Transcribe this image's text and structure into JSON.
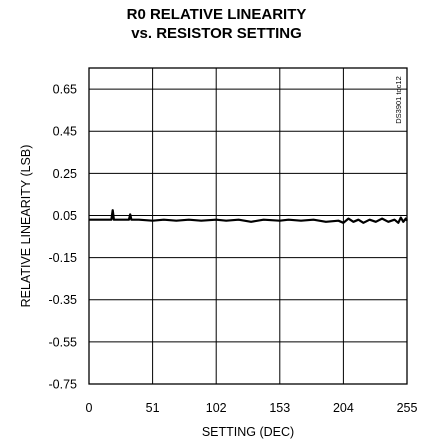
{
  "chart_data": {
    "type": "line",
    "title": "R0 RELATIVE LINEARITY",
    "subtitle": "vs. RESISTOR SETTING",
    "xlabel": "SETTING (DEC)",
    "ylabel": "RELATIVE LINEARITY (LSB)",
    "annotation": "DS3901 toc12",
    "xlim": [
      0,
      255
    ],
    "ylim": [
      -0.75,
      0.75
    ],
    "x_ticks": [
      0,
      51,
      102,
      153,
      204,
      255
    ],
    "x_tick_labels": [
      "0",
      "51",
      "102",
      "153",
      "204",
      "255"
    ],
    "y_ticks": [
      0.65,
      0.45,
      0.25,
      0.05,
      -0.15,
      -0.35,
      -0.55,
      -0.75
    ],
    "y_tick_labels": [
      "0.65",
      "0.45",
      "0.25",
      "0.05",
      "-0.15",
      "-0.35",
      "-0.55",
      "-0.75"
    ],
    "grid": true,
    "series": [
      {
        "color": "#000000",
        "x": [
          0,
          5,
          10,
          15,
          18,
          19,
          20,
          25,
          30,
          32,
          33,
          34,
          40,
          51,
          60,
          70,
          80,
          90,
          102,
          110,
          120,
          130,
          140,
          153,
          160,
          170,
          180,
          190,
          200,
          204,
          208,
          212,
          216,
          220,
          225,
          230,
          235,
          240,
          245,
          248,
          250,
          252,
          254,
          255
        ],
        "y": [
          0.03,
          0.03,
          0.03,
          0.03,
          0.03,
          0.075,
          0.03,
          0.03,
          0.03,
          0.03,
          0.055,
          0.03,
          0.03,
          0.025,
          0.03,
          0.025,
          0.03,
          0.025,
          0.03,
          0.025,
          0.03,
          0.02,
          0.03,
          0.025,
          0.03,
          0.025,
          0.03,
          0.02,
          0.025,
          0.015,
          0.035,
          0.02,
          0.03,
          0.015,
          0.03,
          0.02,
          0.035,
          0.02,
          0.03,
          0.015,
          0.04,
          0.02,
          0.035,
          0.025
        ]
      }
    ]
  }
}
